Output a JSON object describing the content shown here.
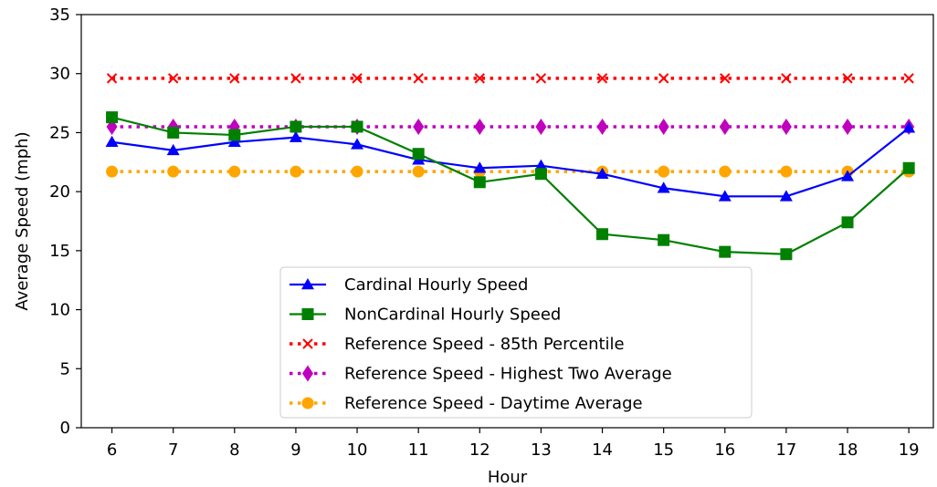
{
  "chart_data": {
    "type": "line",
    "xlabel": "Hour",
    "ylabel": "Average Speed (mph)",
    "x": [
      6,
      7,
      8,
      9,
      10,
      11,
      12,
      13,
      14,
      15,
      16,
      17,
      18,
      19
    ],
    "xlim": [
      5.5,
      19.4
    ],
    "ylim": [
      0,
      35
    ],
    "y_ticks": [
      0,
      5,
      10,
      15,
      20,
      25,
      30,
      35
    ],
    "grid": false,
    "legend_position": "lower-center",
    "series": [
      {
        "name": "Cardinal Hourly Speed",
        "color": "#0000ff",
        "marker": "triangle",
        "line_style": "solid",
        "values": [
          24.2,
          23.5,
          24.2,
          24.6,
          24.0,
          22.7,
          22.0,
          22.2,
          21.5,
          20.3,
          19.6,
          19.6,
          21.3,
          25.4
        ]
      },
      {
        "name": "NonCardinal Hourly Speed",
        "color": "#008000",
        "marker": "square",
        "line_style": "solid",
        "values": [
          26.3,
          25.0,
          24.8,
          25.5,
          25.5,
          23.2,
          20.8,
          21.5,
          16.4,
          15.9,
          14.9,
          14.7,
          17.4,
          22.0
        ]
      },
      {
        "name": "Reference Speed - 85th Percentile",
        "color": "#ff0000",
        "marker": "x",
        "line_style": "dotted",
        "values": [
          29.6,
          29.6,
          29.6,
          29.6,
          29.6,
          29.6,
          29.6,
          29.6,
          29.6,
          29.6,
          29.6,
          29.6,
          29.6,
          29.6
        ]
      },
      {
        "name": "Reference Speed - Highest Two Average",
        "color": "#bf00bf",
        "marker": "diamond",
        "line_style": "dotted",
        "values": [
          25.5,
          25.5,
          25.5,
          25.5,
          25.5,
          25.5,
          25.5,
          25.5,
          25.5,
          25.5,
          25.5,
          25.5,
          25.5,
          25.5
        ]
      },
      {
        "name": "Reference Speed - Daytime Average",
        "color": "#ffa500",
        "marker": "circle",
        "line_style": "dotted",
        "values": [
          21.7,
          21.7,
          21.7,
          21.7,
          21.7,
          21.7,
          21.7,
          21.7,
          21.7,
          21.7,
          21.7,
          21.7,
          21.7,
          21.7
        ]
      }
    ]
  }
}
